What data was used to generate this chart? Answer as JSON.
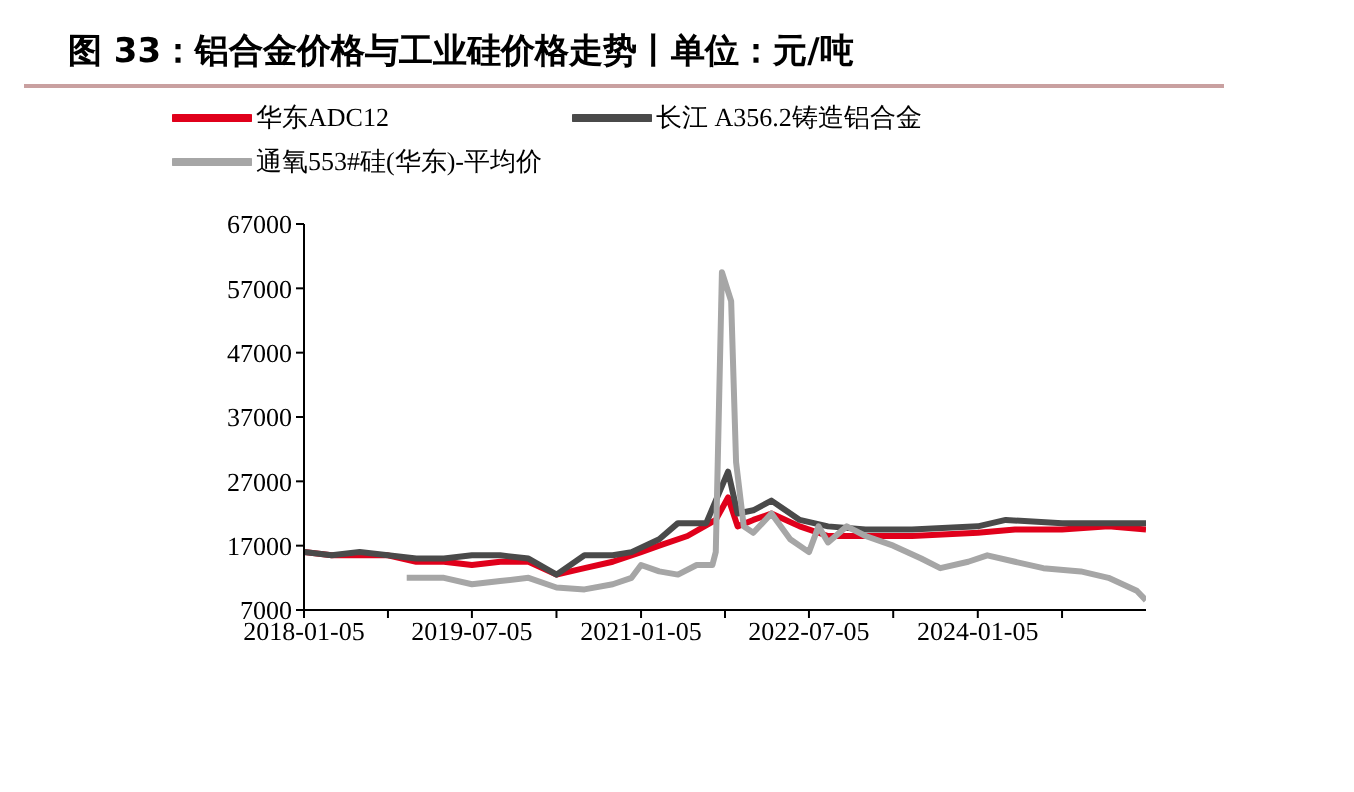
{
  "chart_data": {
    "type": "line",
    "title": "图 33：铝合金价格与工业硅价格走势丨单位：元/吨",
    "legend": "top",
    "marker": "none",
    "line_style": "solid",
    "xlim": [
      "2018-01-05",
      "2025-07-05"
    ],
    "xticks": [
      {
        "value": "2018-01-05",
        "label": "2018-01-05"
      },
      {
        "value": "2018-10-05",
        "label": null
      },
      {
        "value": "2019-07-05",
        "label": "2019-07-05"
      },
      {
        "value": "2020-04-05",
        "label": null
      },
      {
        "value": "2021-01-05",
        "label": "2021-01-05"
      },
      {
        "value": "2021-10-05",
        "label": null
      },
      {
        "value": "2022-07-05",
        "label": "2022-07-05"
      },
      {
        "value": "2023-04-05",
        "label": null
      },
      {
        "value": "2024-01-05",
        "label": "2024-01-05"
      },
      {
        "value": "2024-10-05",
        "label": null
      }
    ],
    "ylim": [
      7000,
      67000
    ],
    "yticks": [
      7000,
      17000,
      27000,
      37000,
      47000,
      57000,
      67000
    ],
    "series": [
      {
        "name": "华东ADC12",
        "color": "#e0001b",
        "x": [
          "2018-01-05",
          "2018-04-05",
          "2018-07-05",
          "2018-10-05",
          "2019-01-05",
          "2019-04-05",
          "2019-07-05",
          "2019-10-05",
          "2020-01-05",
          "2020-04-05",
          "2020-07-05",
          "2020-10-05",
          "2021-01-05",
          "2021-03-05",
          "2021-06-05",
          "2021-09-05",
          "2021-10-15",
          "2021-11-15",
          "2022-01-05",
          "2022-03-05",
          "2022-06-05",
          "2022-09-05",
          "2023-01-05",
          "2023-06-05",
          "2024-01-05",
          "2024-05-05",
          "2024-10-05",
          "2025-03-05",
          "2025-07-05"
        ],
        "values": [
          16000,
          15500,
          15500,
          15500,
          14500,
          14500,
          14000,
          14500,
          14500,
          12500,
          13500,
          14500,
          16000,
          17000,
          18500,
          21000,
          24500,
          20000,
          21000,
          22000,
          20000,
          18500,
          18500,
          18500,
          19000,
          19500,
          19500,
          20000,
          19500
        ]
      },
      {
        "name": "长江 A356.2铸造铝合金",
        "color": "#4a4a4a",
        "x": [
          "2018-01-05",
          "2018-04-05",
          "2018-07-05",
          "2018-10-05",
          "2019-01-05",
          "2019-04-05",
          "2019-07-05",
          "2019-10-05",
          "2020-01-05",
          "2020-04-05",
          "2020-07-05",
          "2020-10-05",
          "2020-12-05",
          "2021-03-05",
          "2021-05-05",
          "2021-08-05",
          "2021-10-15",
          "2021-11-15",
          "2022-01-05",
          "2022-03-05",
          "2022-06-05",
          "2022-09-05",
          "2023-01-05",
          "2023-06-05",
          "2024-01-05",
          "2024-04-05",
          "2024-10-05",
          "2025-03-05",
          "2025-07-05"
        ],
        "values": [
          16000,
          15500,
          16000,
          15500,
          15000,
          15000,
          15500,
          15500,
          15000,
          12500,
          15500,
          15500,
          16000,
          18000,
          20500,
          20500,
          28500,
          22000,
          22500,
          24000,
          21000,
          20000,
          19500,
          19500,
          20000,
          21000,
          20500,
          20500,
          20500
        ]
      },
      {
        "name": "通氧553#硅(华东)-平均价",
        "color": "#a6a6a6",
        "x": [
          "2018-12-05",
          "2019-04-05",
          "2019-07-05",
          "2019-10-05",
          "2020-01-05",
          "2020-04-05",
          "2020-07-05",
          "2020-10-05",
          "2020-12-05",
          "2021-01-05",
          "2021-03-05",
          "2021-05-05",
          "2021-07-05",
          "2021-08-25",
          "2021-09-05",
          "2021-09-25",
          "2021-10-25",
          "2021-11-10",
          "2021-12-05",
          "2022-01-05",
          "2022-03-05",
          "2022-05-05",
          "2022-07-05",
          "2022-08-05",
          "2022-09-05",
          "2022-11-05",
          "2023-01-05",
          "2023-04-05",
          "2023-07-05",
          "2023-09-05",
          "2023-12-05",
          "2024-02-05",
          "2024-05-05",
          "2024-08-05",
          "2024-12-05",
          "2025-03-05",
          "2025-06-05",
          "2025-07-05"
        ],
        "values": [
          12000,
          12000,
          11000,
          11500,
          12000,
          10500,
          10200,
          11000,
          12000,
          14000,
          13000,
          12500,
          14000,
          14000,
          16000,
          59500,
          55000,
          30000,
          20000,
          19000,
          22000,
          18000,
          16000,
          20000,
          17500,
          20000,
          18500,
          17000,
          15000,
          13500,
          14500,
          15500,
          14500,
          13500,
          13000,
          12000,
          10000,
          8500
        ]
      }
    ]
  }
}
